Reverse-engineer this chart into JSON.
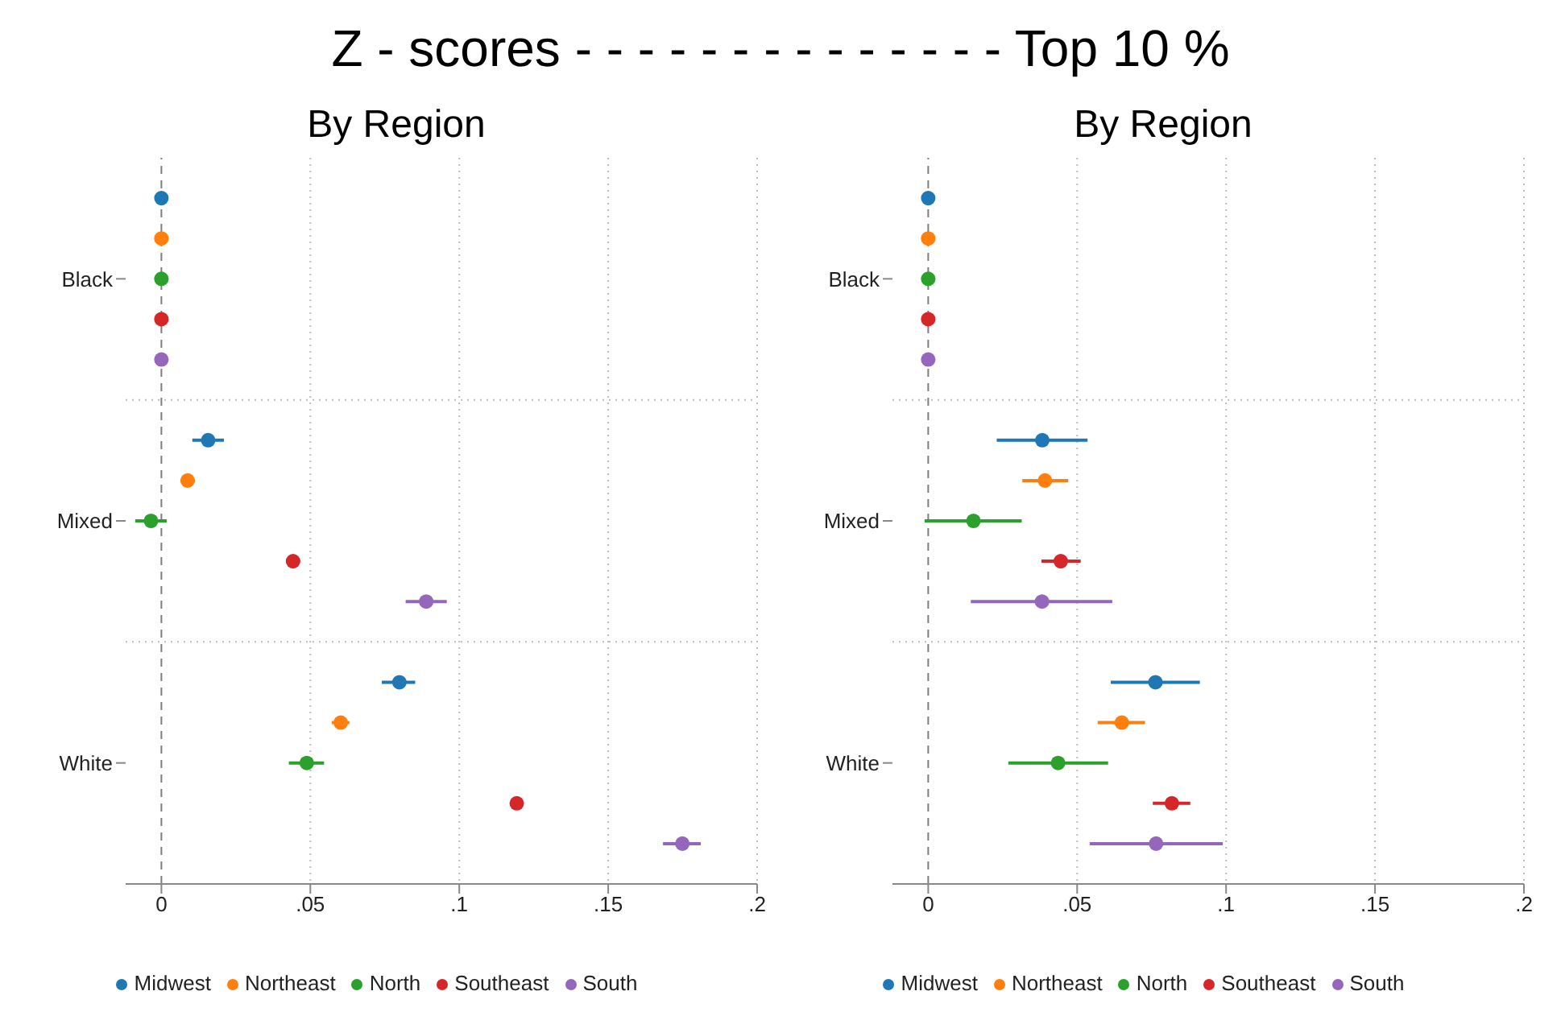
{
  "chart_data": [
    {
      "type": "scatter",
      "title": "By Region",
      "annotations": [
        "Z - scores - - - - - - - - - - - - - - Top 10 %"
      ],
      "orientation": "horizontal",
      "categories": [
        "Black",
        "Mixed",
        "White"
      ],
      "xlim": [
        -0.012,
        0.2
      ],
      "xticks": [
        0,
        {
          "value": 0.05,
          "label": ".05"
        },
        {
          "value": 0.1,
          "label": ".1"
        },
        {
          "value": 0.15,
          "label": ".15"
        },
        {
          "value": 0.2,
          "label": ".2"
        }
      ],
      "grid": true,
      "legend": "bottom",
      "marker": "circle",
      "ref_lines": [
        {
          "axis": "x",
          "value": 0,
          "line_style": "dashed",
          "color": "#7f7f7f"
        }
      ],
      "series": [
        {
          "name": "Midwest",
          "color": "#1f77b4",
          "values": [
            0,
            0.0157,
            0.0799
          ],
          "errors": [
            null,
            [
              0.0104,
              0.021
            ],
            [
              0.074,
              0.0852
            ]
          ]
        },
        {
          "name": "Northeast",
          "color": "#ff7f0e",
          "values": [
            0,
            0.0088,
            0.0602
          ],
          "errors": [
            null,
            [
              0.0064,
              0.0113
            ],
            [
              0.0572,
              0.0631
            ]
          ]
        },
        {
          "name": "North",
          "color": "#2ca02c",
          "values": [
            0,
            -0.0035,
            0.0488
          ],
          "errors": [
            null,
            [
              -0.0088,
              0.0018
            ],
            [
              0.0428,
              0.0546
            ]
          ]
        },
        {
          "name": "Southeast",
          "color": "#d62728",
          "values": [
            0,
            0.0442,
            0.1193
          ],
          "errors": [
            null,
            [
              0.0419,
              0.0465
            ],
            [
              0.117,
              0.1216
            ]
          ]
        },
        {
          "name": "South",
          "color": "#9467bd",
          "values": [
            0,
            0.0889,
            0.1749
          ],
          "errors": [
            null,
            [
              0.082,
              0.0958
            ],
            [
              0.1684,
              0.1811
            ]
          ]
        }
      ]
    },
    {
      "type": "scatter",
      "title": "By Region",
      "orientation": "horizontal",
      "categories": [
        "Black",
        "Mixed",
        "White"
      ],
      "xlim": [
        -0.012,
        0.2
      ],
      "xticks": [
        0,
        {
          "value": 0.05,
          "label": ".05"
        },
        {
          "value": 0.1,
          "label": ".1"
        },
        {
          "value": 0.15,
          "label": ".15"
        },
        {
          "value": 0.2,
          "label": ".2"
        }
      ],
      "grid": true,
      "legend": "bottom",
      "marker": "circle",
      "ref_lines": [
        {
          "axis": "x",
          "value": 0,
          "line_style": "dashed",
          "color": "#7f7f7f"
        }
      ],
      "series": [
        {
          "name": "Midwest",
          "color": "#1f77b4",
          "values": [
            0,
            0.0383,
            0.0763
          ],
          "errors": [
            null,
            [
              0.023,
              0.0535
            ],
            [
              0.0613,
              0.0912
            ]
          ]
        },
        {
          "name": "Northeast",
          "color": "#ff7f0e",
          "values": [
            0,
            0.0392,
            0.065
          ],
          "errors": [
            null,
            [
              0.0316,
              0.047
            ],
            [
              0.0569,
              0.0728
            ]
          ]
        },
        {
          "name": "North",
          "color": "#2ca02c",
          "values": [
            0,
            0.0152,
            0.0436
          ],
          "errors": [
            null,
            [
              -0.0012,
              0.0314
            ],
            [
              0.0269,
              0.0604
            ]
          ]
        },
        {
          "name": "Southeast",
          "color": "#d62728",
          "values": [
            0,
            0.0445,
            0.0818
          ],
          "errors": [
            null,
            [
              0.038,
              0.0512
            ],
            [
              0.0754,
              0.088
            ]
          ]
        },
        {
          "name": "South",
          "color": "#9467bd",
          "values": [
            0,
            0.0382,
            0.0765
          ],
          "errors": [
            null,
            [
              0.0143,
              0.0618
            ],
            [
              0.0542,
              0.0989
            ]
          ]
        }
      ]
    }
  ]
}
